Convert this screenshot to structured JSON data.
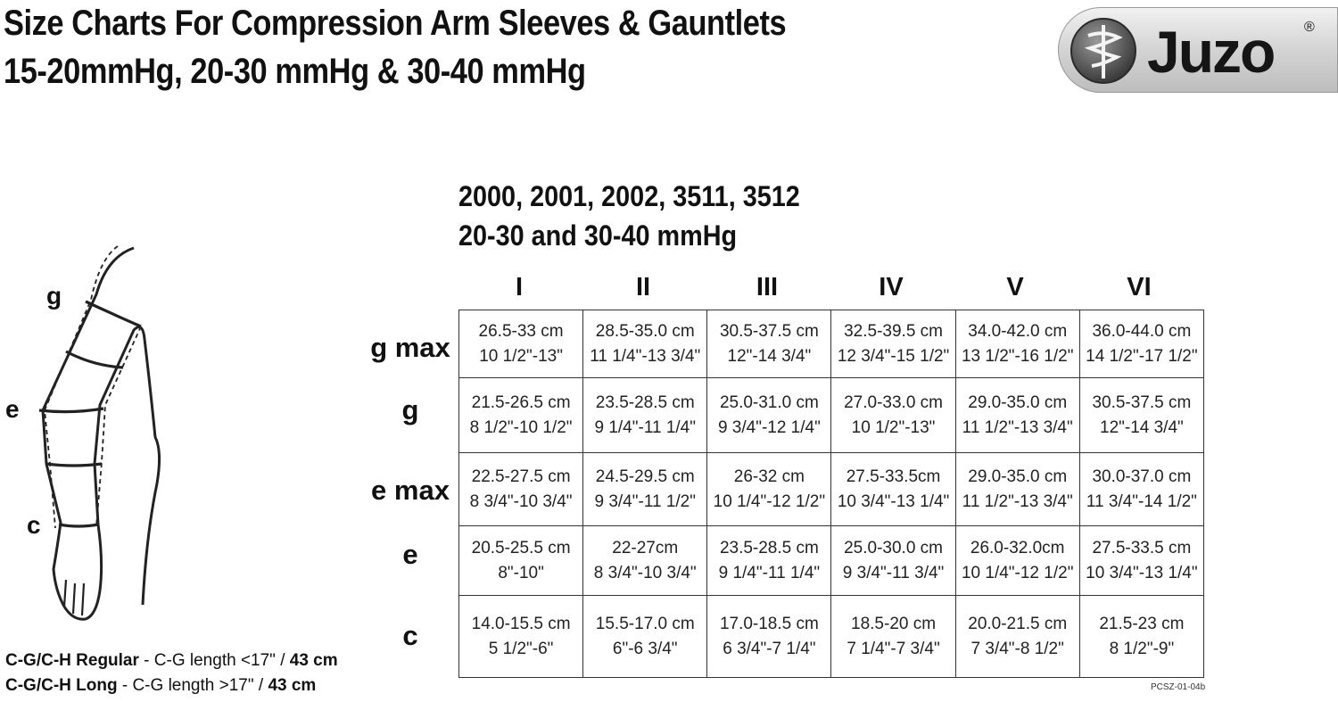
{
  "header": {
    "title_line1": "Size Charts For Compression Arm Sleeves & Gauntlets",
    "title_line2": "15-20mmHg, 20-30 mmHg & 30-40 mmHg"
  },
  "logo": {
    "brand": "Juzo",
    "registered": "®",
    "icon": "caduceus-icon"
  },
  "product": {
    "models": "2000, 2001, 2002, 3511, 3512",
    "compression": "20-30 and 30-40 mmHg"
  },
  "table": {
    "columns": [
      "I",
      "II",
      "III",
      "IV",
      "V",
      "VI"
    ],
    "rows": [
      {
        "label": "g max",
        "cells": [
          [
            "26.5-33 cm",
            "10 1/2\"-13\""
          ],
          [
            "28.5-35.0 cm",
            "11 1/4\"-13 3/4\""
          ],
          [
            "30.5-37.5 cm",
            "12\"-14 3/4\""
          ],
          [
            "32.5-39.5 cm",
            "12 3/4\"-15 1/2\""
          ],
          [
            "34.0-42.0 cm",
            "13 1/2\"-16 1/2\""
          ],
          [
            "36.0-44.0 cm",
            "14 1/2\"-17 1/2\""
          ]
        ]
      },
      {
        "label": "g",
        "cells": [
          [
            "21.5-26.5 cm",
            "8 1/2\"-10 1/2\""
          ],
          [
            "23.5-28.5 cm",
            "9 1/4\"-11 1/4\""
          ],
          [
            "25.0-31.0 cm",
            "9 3/4\"-12 1/4\""
          ],
          [
            "27.0-33.0 cm",
            "10 1/2\"-13\""
          ],
          [
            "29.0-35.0 cm",
            "11 1/2\"-13 3/4\""
          ],
          [
            "30.5-37.5 cm",
            "12\"-14 3/4\""
          ]
        ]
      },
      {
        "label": "e max",
        "cells": [
          [
            "22.5-27.5 cm",
            "8 3/4\"-10 3/4\""
          ],
          [
            "24.5-29.5 cm",
            "9 3/4\"-11 1/2\""
          ],
          [
            "26-32 cm",
            "10 1/4\"-12 1/2\""
          ],
          [
            "27.5-33.5cm",
            "10 3/4\"-13 1/4\""
          ],
          [
            "29.0-35.0 cm",
            "11 1/2\"-13 3/4\""
          ],
          [
            "30.0-37.0 cm",
            "11 3/4\"-14 1/2\""
          ]
        ]
      },
      {
        "label": "e",
        "cells": [
          [
            "20.5-25.5 cm",
            "8\"-10\""
          ],
          [
            "22-27cm",
            "8 3/4\"-10 3/4\""
          ],
          [
            "23.5-28.5 cm",
            "9 1/4\"-11 1/4\""
          ],
          [
            "25.0-30.0 cm",
            "9 3/4\"-11 3/4\""
          ],
          [
            "26.0-32.0cm",
            "10 1/4\"-12 1/2\""
          ],
          [
            "27.5-33.5 cm",
            "10 3/4\"-13 1/4\""
          ]
        ]
      },
      {
        "label": "c",
        "cells": [
          [
            "14.0-15.5 cm",
            "5 1/2\"-6\""
          ],
          [
            "15.5-17.0 cm",
            "6\"-6 3/4\""
          ],
          [
            "17.0-18.5 cm",
            "6 3/4\"-7 1/4\""
          ],
          [
            "18.5-20 cm",
            "7 1/4\"-7 3/4\""
          ],
          [
            "20.0-21.5 cm",
            "7 3/4\"-8 1/2\""
          ],
          [
            "21.5-23 cm",
            "8 1/2\"-9\""
          ]
        ]
      }
    ]
  },
  "diagram": {
    "labels": {
      "g": "g",
      "e": "e",
      "c": "c"
    }
  },
  "footer": {
    "regular_bold": "C-G/C-H Regular",
    "regular_text": " - C-G length <17\" / ",
    "regular_metric": "43 cm",
    "long_bold": "C-G/C-H Long",
    "long_text": " - C-G length >17\" / ",
    "long_metric": "43 cm",
    "doc_code": "PCSZ-01-04b"
  }
}
